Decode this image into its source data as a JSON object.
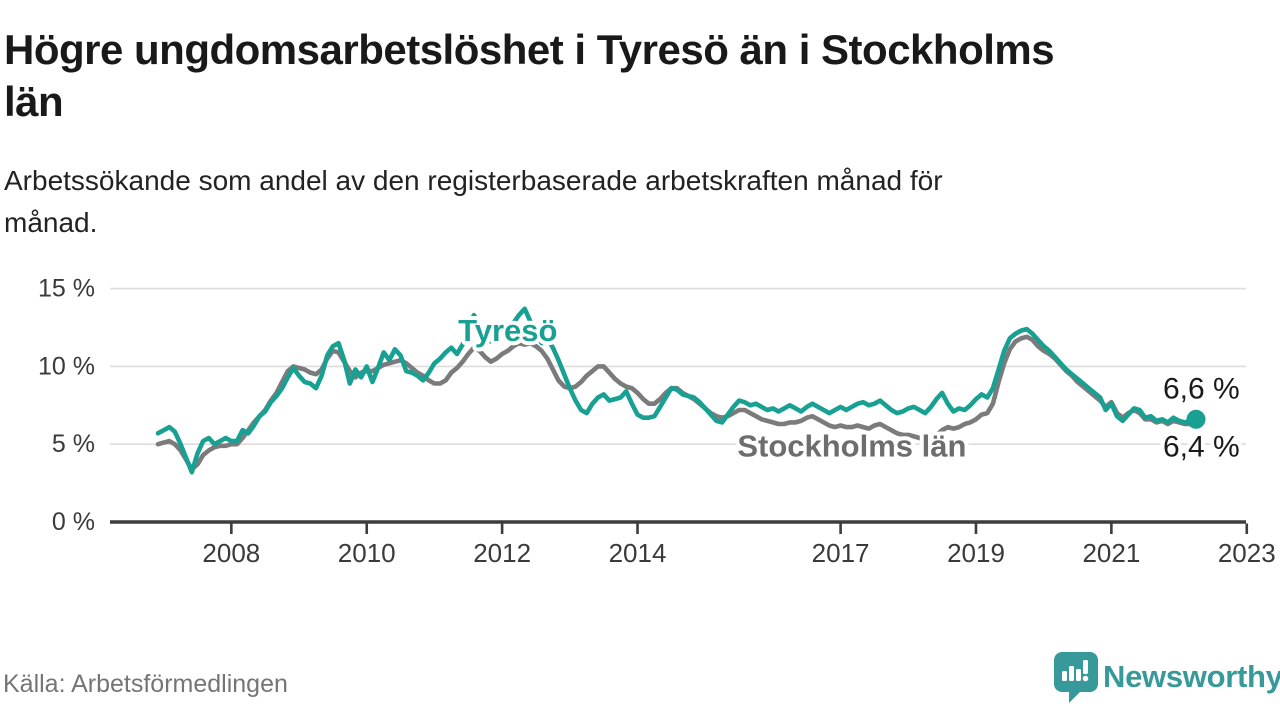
{
  "header": {
    "title_line1": "Högre ungdomsarbetslöshet i Tyresö än i Stockholms",
    "title_line2": "län",
    "subtitle_line1": "Arbetssökande som andel av den registerbaserade arbetskraften månad för",
    "subtitle_line2": "månad."
  },
  "footer": {
    "source": "Källa: Arbetsförmedlingen",
    "brand_name": "Newsworthy",
    "brand_icon": "speech-bubble-bar-chart-exclamation"
  },
  "colors": {
    "tyreso_line": "#18a192",
    "stockholm_line": "#7b7b7b",
    "stockholm_label": "#6d6d6d",
    "grid": "#dddddd",
    "axis": "#3d3d3d",
    "tick_text": "#3a3a3a",
    "value_label_text": "#1a1a1a",
    "brand": "#38999a",
    "background": "#ffffff"
  },
  "chart_data": {
    "type": "line",
    "frequency": "monthly",
    "x_start": "2007-11",
    "x_end": "2023-03",
    "ylim": [
      0,
      15
    ],
    "grid": true,
    "yticks": [
      {
        "value": 0,
        "label": "0 %"
      },
      {
        "value": 5,
        "label": "5 %"
      },
      {
        "value": 10,
        "label": "10 %"
      },
      {
        "value": 15,
        "label": "15 %"
      }
    ],
    "xticks": [
      {
        "year": 2008,
        "label": "2008"
      },
      {
        "year": 2010,
        "label": "2010"
      },
      {
        "year": 2012,
        "label": "2012"
      },
      {
        "year": 2014,
        "label": "2014"
      },
      {
        "year": 2017,
        "label": "2017"
      },
      {
        "year": 2019,
        "label": "2019"
      },
      {
        "year": 2021,
        "label": "2021"
      },
      {
        "year": 2023,
        "label": "2023"
      }
    ],
    "series": [
      {
        "name": "Stockholms län",
        "color": "#7b7b7b",
        "label_color": "#6d6d6d",
        "end_label": "6,4 %",
        "end_value": 6.4,
        "end_dot": false,
        "inline_label_anchor": {
          "month_index": 123,
          "value": 4.9
        },
        "values": [
          5.0,
          5.1,
          5.2,
          5.0,
          4.6,
          4.0,
          3.4,
          3.7,
          4.3,
          4.6,
          4.8,
          4.9,
          4.9,
          5.0,
          5.0,
          5.4,
          5.9,
          6.4,
          6.8,
          7.2,
          7.8,
          8.3,
          9.0,
          9.7,
          10.0,
          9.9,
          9.8,
          9.6,
          9.5,
          9.8,
          10.5,
          11.0,
          10.9,
          10.3,
          9.7,
          9.3,
          9.6,
          9.7,
          9.7,
          9.9,
          10.1,
          10.2,
          10.3,
          10.4,
          10.2,
          9.9,
          9.6,
          9.4,
          9.1,
          8.9,
          8.9,
          9.1,
          9.6,
          9.9,
          10.3,
          10.8,
          11.2,
          11.0,
          10.6,
          10.3,
          10.5,
          10.8,
          11.0,
          11.3,
          11.5,
          11.4,
          11.5,
          11.3,
          11.0,
          10.5,
          9.8,
          9.1,
          8.7,
          8.6,
          8.7,
          9.0,
          9.4,
          9.7,
          10.0,
          10.0,
          9.6,
          9.2,
          8.9,
          8.7,
          8.6,
          8.3,
          7.9,
          7.6,
          7.6,
          7.9,
          8.3,
          8.6,
          8.6,
          8.3,
          8.1,
          7.9,
          7.6,
          7.3,
          7.0,
          6.8,
          6.7,
          6.8,
          7.0,
          7.2,
          7.2,
          7.0,
          6.8,
          6.6,
          6.5,
          6.4,
          6.3,
          6.3,
          6.4,
          6.4,
          6.5,
          6.7,
          6.8,
          6.6,
          6.4,
          6.2,
          6.1,
          6.2,
          6.1,
          6.1,
          6.2,
          6.1,
          6.0,
          6.2,
          6.3,
          6.1,
          5.9,
          5.7,
          5.6,
          5.6,
          5.5,
          5.4,
          5.3,
          5.4,
          5.6,
          5.9,
          6.1,
          6.0,
          6.1,
          6.3,
          6.4,
          6.6,
          6.9,
          7.0,
          7.6,
          9.0,
          10.2,
          11.1,
          11.6,
          11.8,
          11.9,
          11.7,
          11.3,
          11.0,
          10.8,
          10.5,
          10.1,
          9.7,
          9.4,
          9.0,
          8.7,
          8.4,
          8.1,
          7.8,
          7.4,
          7.7,
          7.0,
          6.7,
          7.0,
          7.2,
          7.0,
          6.6,
          6.6,
          6.4,
          6.5,
          6.3,
          6.5,
          6.4,
          6.3,
          6.3,
          6.4
        ]
      },
      {
        "name": "Tyresö",
        "color": "#18a192",
        "label_color": "#18a192",
        "end_label": "6,6 %",
        "end_value": 6.6,
        "end_dot": true,
        "inline_label_anchor": {
          "month_index": 62,
          "value": 12.3
        },
        "values": [
          5.7,
          5.9,
          6.1,
          5.8,
          5.0,
          4.1,
          3.2,
          4.4,
          5.2,
          5.4,
          5.0,
          5.2,
          5.4,
          5.2,
          5.2,
          5.9,
          5.7,
          6.2,
          6.8,
          7.1,
          7.7,
          8.1,
          8.6,
          9.3,
          9.9,
          9.4,
          9.0,
          8.9,
          8.6,
          9.4,
          10.7,
          11.3,
          11.5,
          10.4,
          8.9,
          9.8,
          9.3,
          10.0,
          9.0,
          9.9,
          10.9,
          10.4,
          11.1,
          10.7,
          9.7,
          9.6,
          9.4,
          9.1,
          9.6,
          10.2,
          10.5,
          10.9,
          11.2,
          10.8,
          11.4,
          12.4,
          13.3,
          12.6,
          12.0,
          11.6,
          11.8,
          12.1,
          12.3,
          12.8,
          13.3,
          13.7,
          12.9,
          12.1,
          11.5,
          11.8,
          11.2,
          10.4,
          9.5,
          8.6,
          7.8,
          7.2,
          7.0,
          7.6,
          8.0,
          8.2,
          7.8,
          7.9,
          8.0,
          8.4,
          7.6,
          6.9,
          6.7,
          6.7,
          6.8,
          7.4,
          8.0,
          8.6,
          8.5,
          8.2,
          8.1,
          8.0,
          7.7,
          7.3,
          6.9,
          6.5,
          6.4,
          6.9,
          7.4,
          7.8,
          7.7,
          7.5,
          7.6,
          7.4,
          7.2,
          7.3,
          7.1,
          7.3,
          7.5,
          7.3,
          7.1,
          7.4,
          7.6,
          7.4,
          7.2,
          7.0,
          7.2,
          7.4,
          7.2,
          7.4,
          7.6,
          7.7,
          7.5,
          7.6,
          7.8,
          7.5,
          7.2,
          7.0,
          7.1,
          7.3,
          7.4,
          7.2,
          7.0,
          7.4,
          7.9,
          8.3,
          7.6,
          7.1,
          7.3,
          7.2,
          7.5,
          7.9,
          8.2,
          8.0,
          8.6,
          9.8,
          11.0,
          11.8,
          12.1,
          12.3,
          12.4,
          12.1,
          11.7,
          11.3,
          11.0,
          10.6,
          10.2,
          9.8,
          9.5,
          9.2,
          8.9,
          8.6,
          8.3,
          8.0,
          7.2,
          7.6,
          6.8,
          6.5,
          6.9,
          7.3,
          7.2,
          6.7,
          6.8,
          6.5,
          6.6,
          6.4,
          6.7,
          6.5,
          6.4,
          6.5,
          6.6
        ]
      }
    ]
  }
}
